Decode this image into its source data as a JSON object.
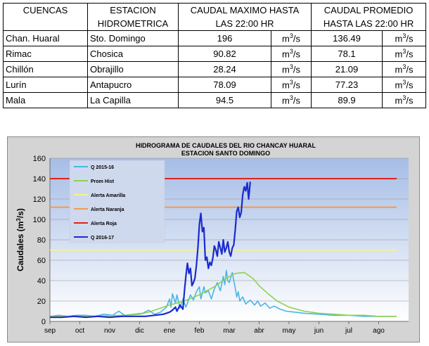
{
  "table": {
    "headers_row1": [
      "CUENCAS",
      "ESTACION",
      "CAUDAL MAXIMO HASTA",
      "CAUDAL PROMEDIO"
    ],
    "headers_row2": [
      "",
      "HIDROMETRICA",
      "LAS 22:00 HR",
      "HASTA LAS 22:00 HR"
    ],
    "unit": "m3/s",
    "rows": [
      {
        "cuenca": "Chan. Huaral",
        "estacion": "Sto. Domingo",
        "max": "196",
        "prom": "136.49"
      },
      {
        "cuenca": "Rimac",
        "estacion": "Chosica",
        "max": "90.82",
        "prom": "78.1"
      },
      {
        "cuenca": "Chillón",
        "estacion": "Obrajillo",
        "max": "28.24",
        "prom": "21.09"
      },
      {
        "cuenca": "Lurín",
        "estacion": "Antapucro",
        "max": "78.09",
        "prom": "77.23"
      },
      {
        "cuenca": "Mala",
        "estacion": "La Capilla",
        "max": "94.5",
        "prom": "89.9"
      }
    ]
  },
  "chart_data": {
    "type": "line",
    "title": "HIDROGRAMA DE CAUDALES  DEL RIO CHANCAY HUARAL",
    "subtitle": "ESTACION SANTO DOMINGO",
    "ylabel": "Caudales  (m3/s)",
    "xlabel": "",
    "categories": [
      "sep",
      "oct",
      "nov",
      "dic",
      "ene",
      "feb",
      "mar",
      "abr",
      "may",
      "jun",
      "jul",
      "ago"
    ],
    "ylim": [
      0,
      160
    ],
    "yticks": [
      0,
      20,
      40,
      60,
      80,
      100,
      120,
      140,
      160
    ],
    "legend_position": "top-left",
    "series": [
      {
        "name": "Q 2015-16",
        "color": "#4ab6e6",
        "points": [
          [
            0,
            5
          ],
          [
            0.3,
            6
          ],
          [
            0.6,
            5
          ],
          [
            0.9,
            6
          ],
          [
            1.2,
            6
          ],
          [
            1.5,
            5
          ],
          [
            1.8,
            7
          ],
          [
            2.1,
            6
          ],
          [
            2.3,
            10
          ],
          [
            2.5,
            6
          ],
          [
            2.8,
            7
          ],
          [
            3.1,
            8
          ],
          [
            3.3,
            11
          ],
          [
            3.5,
            7
          ],
          [
            3.7,
            9
          ],
          [
            3.9,
            14
          ],
          [
            4.0,
            22
          ],
          [
            4.05,
            14
          ],
          [
            4.1,
            27
          ],
          [
            4.2,
            18
          ],
          [
            4.25,
            26
          ],
          [
            4.35,
            13
          ],
          [
            4.45,
            22
          ],
          [
            4.55,
            14
          ],
          [
            4.7,
            26
          ],
          [
            4.8,
            21
          ],
          [
            4.9,
            29
          ],
          [
            5.0,
            34
          ],
          [
            5.05,
            22
          ],
          [
            5.15,
            34
          ],
          [
            5.2,
            28
          ],
          [
            5.3,
            30
          ],
          [
            5.4,
            22
          ],
          [
            5.5,
            32
          ],
          [
            5.6,
            38
          ],
          [
            5.7,
            30
          ],
          [
            5.8,
            44
          ],
          [
            5.85,
            36
          ],
          [
            5.9,
            50
          ],
          [
            5.95,
            40
          ],
          [
            6.0,
            38
          ],
          [
            6.05,
            43
          ],
          [
            6.1,
            48
          ],
          [
            6.15,
            40
          ],
          [
            6.2,
            33
          ],
          [
            6.25,
            24
          ],
          [
            6.3,
            29
          ],
          [
            6.35,
            20
          ],
          [
            6.45,
            24
          ],
          [
            6.55,
            17
          ],
          [
            6.7,
            21
          ],
          [
            6.85,
            16
          ],
          [
            6.95,
            20
          ],
          [
            7.05,
            15
          ],
          [
            7.2,
            18
          ],
          [
            7.35,
            13
          ],
          [
            7.5,
            15
          ],
          [
            7.7,
            12
          ],
          [
            7.9,
            10
          ],
          [
            8.2,
            9
          ],
          [
            8.5,
            8
          ],
          [
            9.0,
            7
          ],
          [
            9.5,
            6
          ],
          [
            10,
            6
          ],
          [
            10.5,
            5
          ],
          [
            11,
            5
          ],
          [
            11.6,
            5
          ]
        ]
      },
      {
        "name": "Prom Hist",
        "color": "#8fd14f",
        "points": [
          [
            0,
            5
          ],
          [
            1,
            5
          ],
          [
            2,
            5.5
          ],
          [
            2.5,
            6
          ],
          [
            3,
            7
          ],
          [
            3.3,
            9
          ],
          [
            3.6,
            12
          ],
          [
            4,
            16
          ],
          [
            4.5,
            20
          ],
          [
            5,
            26
          ],
          [
            5.5,
            34
          ],
          [
            5.8,
            40
          ],
          [
            6.0,
            44
          ],
          [
            6.2,
            47
          ],
          [
            6.5,
            48
          ],
          [
            6.8,
            42
          ],
          [
            7.0,
            35
          ],
          [
            7.3,
            27
          ],
          [
            7.6,
            20
          ],
          [
            8,
            14
          ],
          [
            8.5,
            10
          ],
          [
            9,
            8
          ],
          [
            9.5,
            7
          ],
          [
            10,
            6
          ],
          [
            10.5,
            6
          ],
          [
            11,
            5
          ],
          [
            11.6,
            5
          ]
        ]
      },
      {
        "name": "Alerta Amarilla",
        "color": "#f2f28a",
        "points": [
          [
            0,
            70
          ],
          [
            11.6,
            70
          ]
        ]
      },
      {
        "name": "Alerta Naranja",
        "color": "#f59a4a",
        "points": [
          [
            0,
            112
          ],
          [
            11.6,
            112
          ]
        ]
      },
      {
        "name": "Alerta Roja",
        "color": "#e0221c",
        "points": [
          [
            0,
            140
          ],
          [
            11.6,
            140
          ]
        ]
      },
      {
        "name": "Q 2016-17",
        "color": "#1a2bd0",
        "points": [
          [
            0,
            4
          ],
          [
            0.4,
            4
          ],
          [
            0.8,
            5
          ],
          [
            1.2,
            4
          ],
          [
            1.6,
            5
          ],
          [
            2.0,
            4
          ],
          [
            2.4,
            5
          ],
          [
            2.8,
            5
          ],
          [
            3.2,
            5
          ],
          [
            3.5,
            6
          ],
          [
            3.8,
            7
          ],
          [
            4.0,
            9
          ],
          [
            4.1,
            11
          ],
          [
            4.2,
            14
          ],
          [
            4.25,
            10
          ],
          [
            4.35,
            16
          ],
          [
            4.45,
            12
          ],
          [
            4.5,
            30
          ],
          [
            4.55,
            45
          ],
          [
            4.6,
            57
          ],
          [
            4.65,
            47
          ],
          [
            4.7,
            52
          ],
          [
            4.75,
            35
          ],
          [
            4.8,
            38
          ],
          [
            4.85,
            42
          ],
          [
            4.9,
            55
          ],
          [
            4.95,
            72
          ],
          [
            5.0,
            95
          ],
          [
            5.05,
            106
          ],
          [
            5.1,
            88
          ],
          [
            5.15,
            92
          ],
          [
            5.2,
            60
          ],
          [
            5.25,
            63
          ],
          [
            5.3,
            52
          ],
          [
            5.35,
            58
          ],
          [
            5.4,
            55
          ],
          [
            5.45,
            62
          ],
          [
            5.5,
            74
          ],
          [
            5.55,
            70
          ],
          [
            5.6,
            64
          ],
          [
            5.65,
            78
          ],
          [
            5.7,
            72
          ],
          [
            5.75,
            66
          ],
          [
            5.8,
            80
          ],
          [
            5.85,
            68
          ],
          [
            5.9,
            72
          ],
          [
            5.95,
            78
          ],
          [
            6.0,
            68
          ],
          [
            6.05,
            64
          ],
          [
            6.1,
            72
          ],
          [
            6.15,
            75
          ],
          [
            6.2,
            90
          ],
          [
            6.25,
            108
          ],
          [
            6.3,
            112
          ],
          [
            6.35,
            102
          ],
          [
            6.4,
            107
          ],
          [
            6.45,
            124
          ],
          [
            6.5,
            132
          ],
          [
            6.55,
            128
          ],
          [
            6.6,
            136
          ],
          [
            6.65,
            120
          ],
          [
            6.7,
            137
          ]
        ]
      }
    ]
  }
}
